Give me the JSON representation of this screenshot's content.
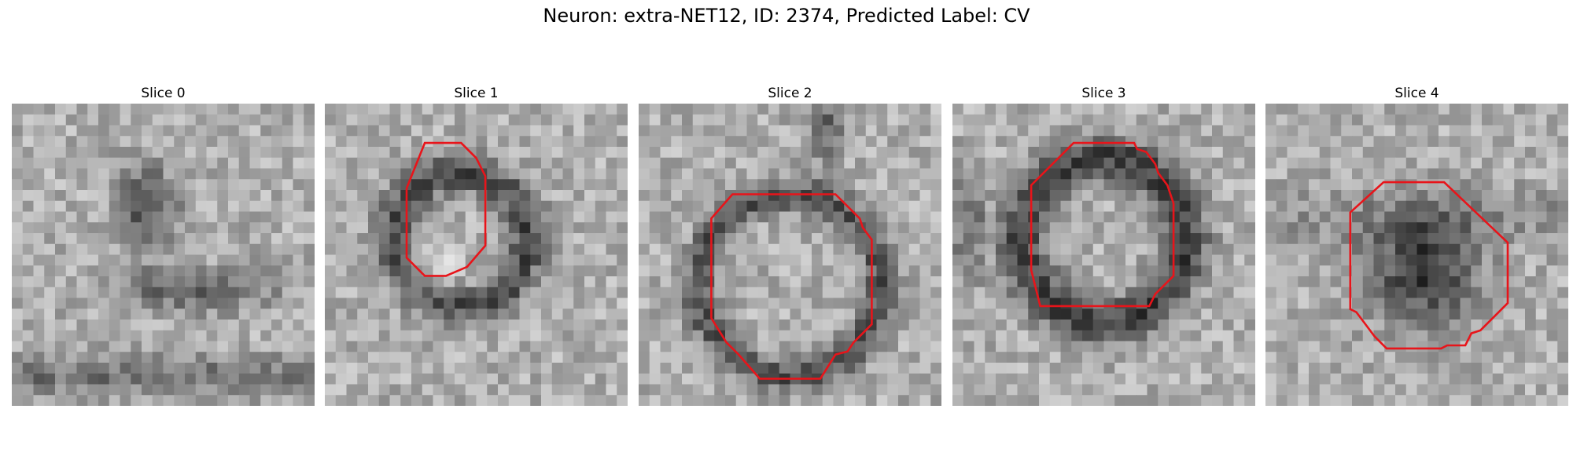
{
  "figure": {
    "title": "Neuron: extra-NET12, ID: 2374, Predicted Label: CV"
  },
  "panels": [
    {
      "title": "Slice 0",
      "description": "grayscale microscopy patch, irregular dark blotches, no ROI outline",
      "has_roi": false,
      "seed": 11
    },
    {
      "title": "Slice 1",
      "description": "ring-like dark membrane with bright center",
      "has_roi": true,
      "roi_polygon": [
        [
          0.33,
          0.13
        ],
        [
          0.45,
          0.13
        ],
        [
          0.5,
          0.18
        ],
        [
          0.53,
          0.24
        ],
        [
          0.53,
          0.47
        ],
        [
          0.47,
          0.54
        ],
        [
          0.4,
          0.57
        ],
        [
          0.33,
          0.57
        ],
        [
          0.27,
          0.51
        ],
        [
          0.27,
          0.28
        ]
      ],
      "seed": 23
    },
    {
      "title": "Slice 2",
      "description": "large circular dark ring around lighter interior",
      "has_roi": true,
      "roi_polygon": [
        [
          0.31,
          0.3
        ],
        [
          0.65,
          0.3
        ],
        [
          0.73,
          0.38
        ],
        [
          0.74,
          0.41
        ],
        [
          0.77,
          0.45
        ],
        [
          0.77,
          0.73
        ],
        [
          0.71,
          0.79
        ],
        [
          0.69,
          0.82
        ],
        [
          0.65,
          0.83
        ],
        [
          0.6,
          0.91
        ],
        [
          0.4,
          0.91
        ],
        [
          0.33,
          0.83
        ],
        [
          0.29,
          0.79
        ],
        [
          0.24,
          0.71
        ],
        [
          0.24,
          0.38
        ]
      ],
      "seed": 37
    },
    {
      "title": "Slice 3",
      "description": "dark thick ring, textured interior",
      "has_roi": true,
      "roi_polygon": [
        [
          0.4,
          0.13
        ],
        [
          0.6,
          0.13
        ],
        [
          0.61,
          0.15
        ],
        [
          0.64,
          0.16
        ],
        [
          0.67,
          0.2
        ],
        [
          0.68,
          0.23
        ],
        [
          0.71,
          0.27
        ],
        [
          0.73,
          0.33
        ],
        [
          0.73,
          0.57
        ],
        [
          0.67,
          0.63
        ],
        [
          0.65,
          0.67
        ],
        [
          0.29,
          0.67
        ],
        [
          0.26,
          0.55
        ],
        [
          0.26,
          0.27
        ]
      ],
      "seed": 41
    },
    {
      "title": "Slice 4",
      "description": "dark filled blob on lighter background",
      "has_roi": true,
      "roi_polygon": [
        [
          0.39,
          0.26
        ],
        [
          0.59,
          0.26
        ],
        [
          0.8,
          0.46
        ],
        [
          0.8,
          0.66
        ],
        [
          0.71,
          0.75
        ],
        [
          0.68,
          0.76
        ],
        [
          0.66,
          0.8
        ],
        [
          0.6,
          0.8
        ],
        [
          0.58,
          0.81
        ],
        [
          0.4,
          0.81
        ],
        [
          0.36,
          0.77
        ],
        [
          0.3,
          0.69
        ],
        [
          0.28,
          0.68
        ],
        [
          0.28,
          0.36
        ]
      ],
      "seed": 53
    }
  ],
  "colors": {
    "roi": "#e8141a"
  }
}
